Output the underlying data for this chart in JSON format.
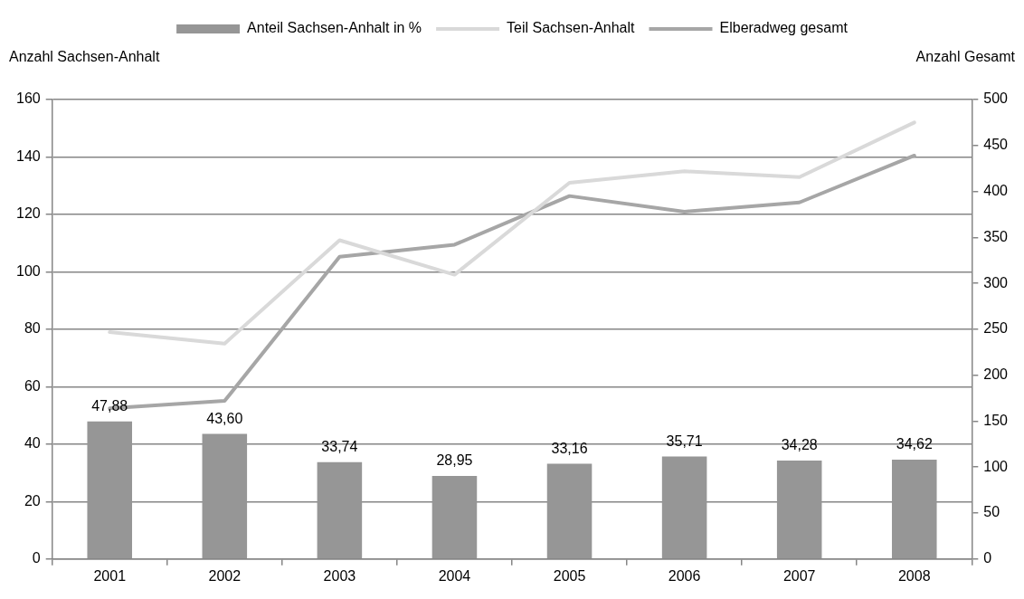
{
  "chart_data": {
    "type": "bar",
    "ylabel": "Anzahl Sachsen-Anhalt",
    "y2label": "Anzahl Gesamt",
    "categories": [
      "2001",
      "2002",
      "2003",
      "2004",
      "2005",
      "2006",
      "2007",
      "2008"
    ],
    "series": [
      {
        "name": "Anteil Sachsen-Anhalt in %",
        "color": "#969696",
        "values": [
          47.88,
          43.6,
          33.74,
          28.95,
          33.16,
          35.71,
          34.28,
          34.62
        ],
        "value_labels": [
          "47,88",
          "43,60",
          "33,74",
          "28,95",
          "33,16",
          "35,71",
          "34,28",
          "34,62"
        ]
      },
      {
        "name": "Teil Sachsen-Anhalt",
        "type": "line",
        "color": "#d9d9d9",
        "values": [
          79,
          75,
          111,
          99,
          131,
          135,
          133,
          152
        ]
      },
      {
        "name": "Elberadweg gesamt",
        "type": "line",
        "color": "#a6a6a6",
        "axis": "y2",
        "values": [
          164,
          172,
          329,
          342,
          395,
          378,
          388,
          439
        ]
      }
    ],
    "ylim": [
      0,
      160
    ],
    "yticks": [
      0,
      20,
      40,
      60,
      80,
      100,
      120,
      140,
      160
    ],
    "y2lim": [
      0,
      500
    ],
    "y2ticks": [
      0,
      50,
      100,
      150,
      200,
      250,
      300,
      350,
      400,
      450,
      500
    ],
    "grid": "y",
    "legend": "top",
    "marker": "none"
  }
}
